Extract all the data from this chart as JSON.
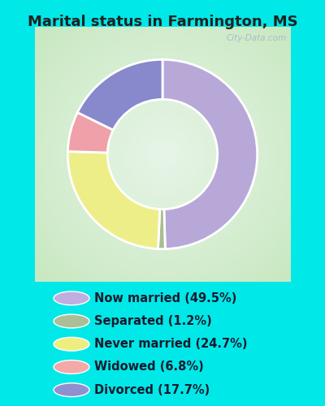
{
  "title": "Marital status in Farmington, MS",
  "slices": [
    49.5,
    1.2,
    24.7,
    6.8,
    17.7
  ],
  "labels": [
    "Now married (49.5%)",
    "Separated (1.2%)",
    "Never married (24.7%)",
    "Widowed (6.8%)",
    "Divorced (17.7%)"
  ],
  "colors": [
    "#b8a8d8",
    "#a8be90",
    "#eeee88",
    "#f0a0a8",
    "#8888cc"
  ],
  "legend_colors": [
    "#c0aee0",
    "#aabf95",
    "#eeee80",
    "#f4a8a8",
    "#9090d0"
  ],
  "bg_cyan": "#00e8e8",
  "bg_chart_color1": "#c8e8c8",
  "bg_chart_color2": "#e8f4e8",
  "bg_chart_center": "#e0efe0",
  "title_fontsize": 13,
  "legend_fontsize": 10.5,
  "watermark": "City-Data.com",
  "start_angle": 90,
  "donut_width": 0.42
}
